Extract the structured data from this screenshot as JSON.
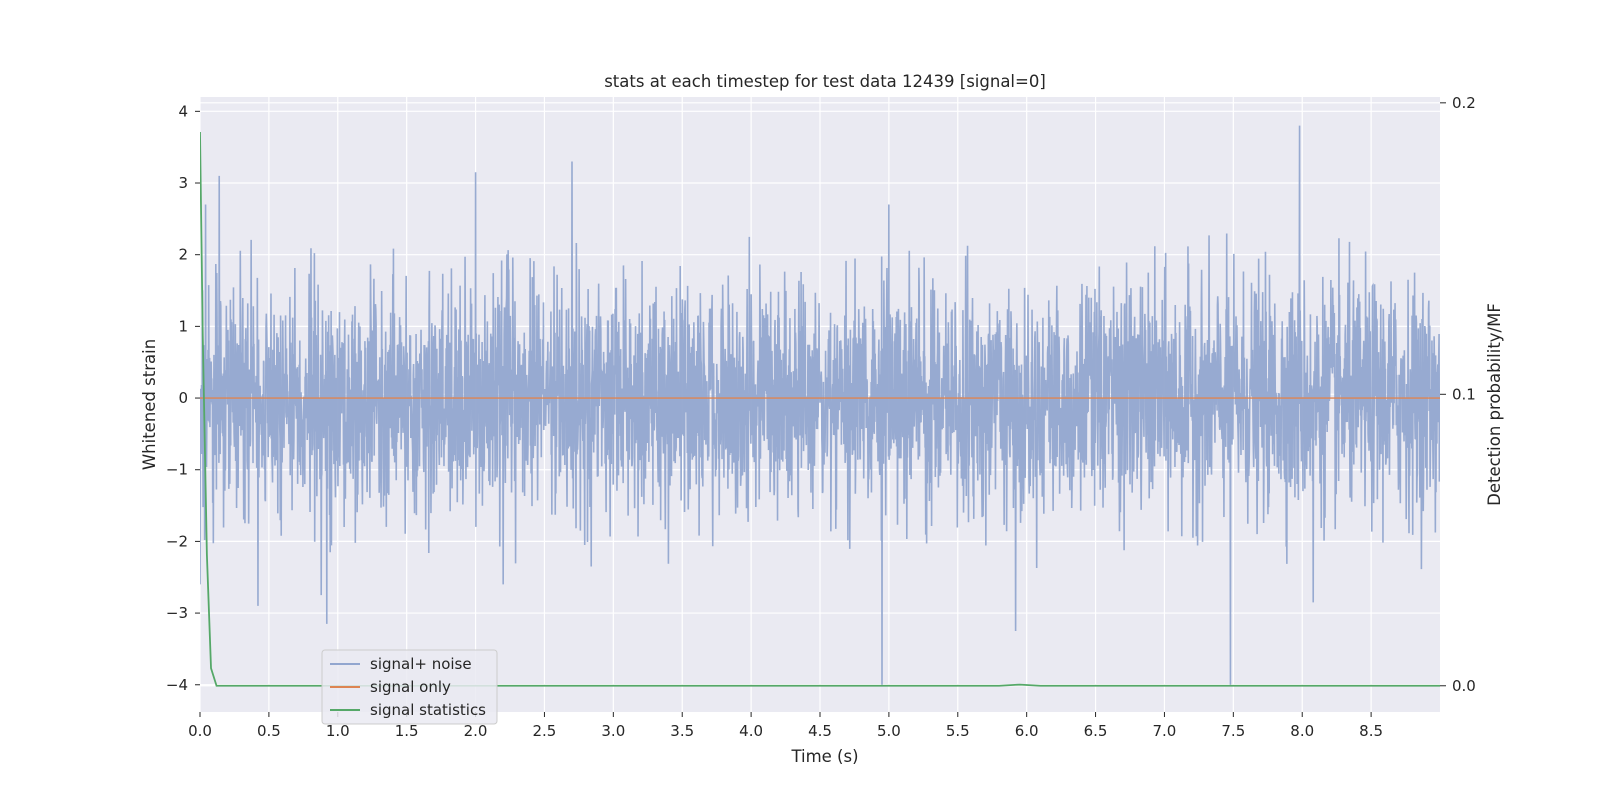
{
  "chart_data": {
    "type": "line",
    "title": "stats at each timestep for test data 12439 [signal=0]",
    "xlabel": "Time (s)",
    "ylabel": "Whitened strain",
    "y2label": "Detection probability/MF",
    "xlim": [
      0,
      9.0
    ],
    "ylim": [
      -4.38,
      4.2
    ],
    "y2lim": [
      -0.009,
      0.202
    ],
    "xticks": [
      "0.0",
      "0.5",
      "1.0",
      "1.5",
      "2.0",
      "2.5",
      "3.0",
      "3.5",
      "4.0",
      "4.5",
      "5.0",
      "5.5",
      "6.0",
      "6.5",
      "7.0",
      "7.5",
      "8.0",
      "8.5"
    ],
    "yticks": [
      "−4",
      "−3",
      "−2",
      "−1",
      "0",
      "1",
      "2",
      "3",
      "4"
    ],
    "y2ticks": [
      "0.0",
      "0.1",
      "0.2"
    ],
    "grid": true,
    "legend_position": "lower-left",
    "series": [
      {
        "name": "signal+ noise",
        "color": "#92a6cf",
        "axis": "left",
        "description": "whitened strain noise, roughly within ±2.5 with spikes",
        "peaks": [
          {
            "x": 0.0,
            "y": -2.6
          },
          {
            "x": 0.04,
            "y": 2.7
          },
          {
            "x": 0.14,
            "y": 3.1
          },
          {
            "x": 0.42,
            "y": -2.9
          },
          {
            "x": 0.88,
            "y": -2.75
          },
          {
            "x": 0.92,
            "y": -3.15
          },
          {
            "x": 2.0,
            "y": 3.15
          },
          {
            "x": 2.2,
            "y": -2.6
          },
          {
            "x": 2.7,
            "y": 3.3
          },
          {
            "x": 4.95,
            "y": -4.0
          },
          {
            "x": 5.0,
            "y": 2.7
          },
          {
            "x": 5.92,
            "y": -3.25
          },
          {
            "x": 7.48,
            "y": -4.0
          },
          {
            "x": 7.98,
            "y": 3.8
          },
          {
            "x": 8.08,
            "y": -2.85
          }
        ]
      },
      {
        "name": "signal only",
        "color": "#dd8452",
        "axis": "left",
        "x": [
          0,
          9.0
        ],
        "y": [
          0,
          0
        ]
      },
      {
        "name": "signal statistics",
        "color": "#55a868",
        "axis": "right",
        "x": [
          0.0,
          0.02,
          0.05,
          0.08,
          0.12,
          0.5,
          5.8,
          5.95,
          6.1,
          9.0
        ],
        "y": [
          0.19,
          0.12,
          0.045,
          0.006,
          0.0,
          0.0,
          0.0,
          0.0004,
          0.0,
          0.0
        ]
      }
    ]
  }
}
